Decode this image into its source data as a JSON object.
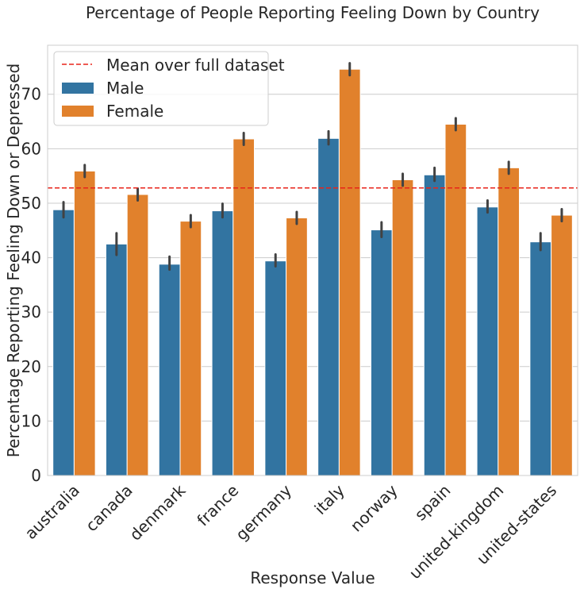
{
  "chart_data": {
    "type": "bar",
    "title": "Percentage of People Reporting Feeling Down by Country",
    "xlabel": "Response Value",
    "ylabel": "Percentage Reporting Feeling Down or Depressed",
    "categories": [
      "australia",
      "canada",
      "denmark",
      "france",
      "germany",
      "italy",
      "norway",
      "spain",
      "united-kingdom",
      "united-states"
    ],
    "ylim": [
      0,
      79
    ],
    "yticks": [
      0,
      10,
      20,
      30,
      40,
      50,
      60,
      70
    ],
    "grid": true,
    "legend_position": "top-left",
    "series": [
      {
        "name": "Male",
        "color": "#3274a1",
        "values": [
          48.8,
          42.5,
          38.8,
          48.6,
          39.4,
          61.9,
          45.1,
          55.2,
          49.3,
          42.9
        ],
        "error_low": [
          47.4,
          40.5,
          37.8,
          47.4,
          38.4,
          60.8,
          43.8,
          54.1,
          48.3,
          41.4
        ],
        "error_high": [
          50.2,
          44.5,
          40.2,
          49.9,
          40.6,
          63.2,
          46.5,
          56.5,
          50.5,
          44.5
        ]
      },
      {
        "name": "Female",
        "color": "#e1812c",
        "values": [
          55.9,
          51.6,
          46.7,
          61.8,
          47.3,
          74.6,
          54.3,
          64.5,
          56.5,
          47.8
        ]
      }
    ],
    "reference_lines": [
      {
        "label": "Mean over full dataset",
        "value": 52.8,
        "color": "#e8231a",
        "style": "dashed"
      }
    ]
  }
}
